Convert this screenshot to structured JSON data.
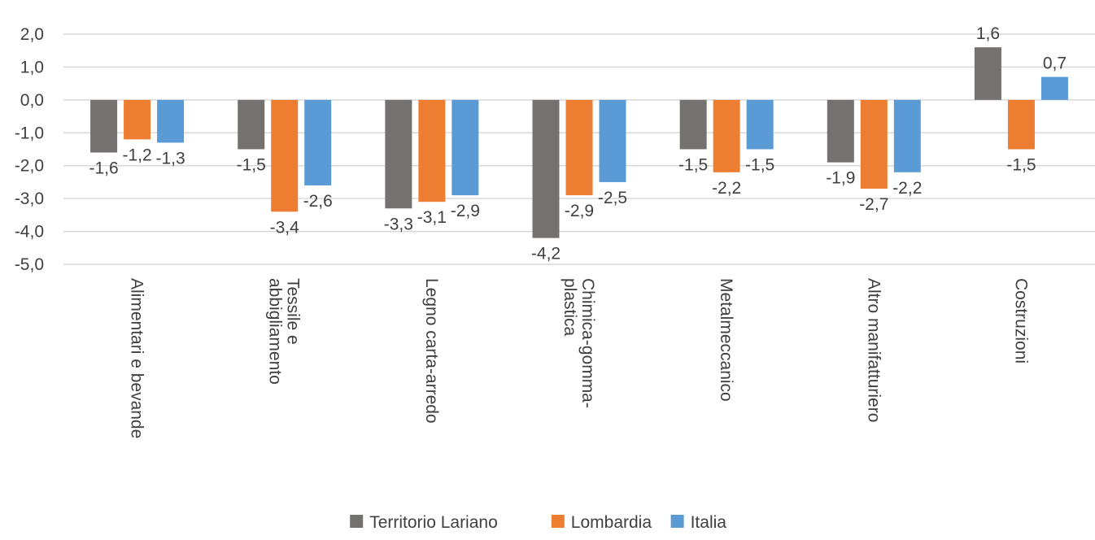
{
  "chart_data": {
    "type": "bar",
    "title": "",
    "xlabel": "",
    "ylabel": "",
    "ylim": [
      -5.0,
      2.0
    ],
    "yticks": [
      "2,0",
      "1,0",
      "0,0",
      "-1,0",
      "-2,0",
      "-3,0",
      "-4,0",
      "-5,0"
    ],
    "categories": [
      [
        "Alimentari e bevande"
      ],
      [
        "Tessile e",
        "abbigliamento"
      ],
      [
        "Legno carta-arredo"
      ],
      [
        "Chimica-gomma-",
        "plastica"
      ],
      [
        "Metalmeccanico"
      ],
      [
        "Altro manifatturiero"
      ],
      [
        "Costruzioni"
      ]
    ],
    "series": [
      {
        "name": "Territorio Lariano",
        "color": "#767171",
        "values": [
          -1.6,
          -1.5,
          -3.3,
          -4.2,
          -1.5,
          -1.9,
          1.6
        ],
        "labels": [
          "-1,6",
          "-1,5",
          "-3,3",
          "-4,2",
          "-1,5",
          "-1,9",
          "1,6"
        ]
      },
      {
        "name": "Lombardia",
        "color": "#ed7d31",
        "values": [
          -1.2,
          -3.4,
          -3.1,
          -2.9,
          -2.2,
          -2.7,
          -1.5
        ],
        "labels": [
          "-1,2",
          "-3,4",
          "-3,1",
          "-2,9",
          "-2,2",
          "-2,7",
          "-1,5"
        ]
      },
      {
        "name": "Italia",
        "color": "#5b9bd5",
        "values": [
          -1.3,
          -2.6,
          -2.9,
          -2.5,
          -1.5,
          -2.2,
          0.7
        ],
        "labels": [
          "-1,3",
          "-2,6",
          "-2,9",
          "-2,5",
          "-1,5",
          "-2,2",
          "0,7"
        ]
      }
    ],
    "grid": true,
    "legend": "bottom"
  }
}
